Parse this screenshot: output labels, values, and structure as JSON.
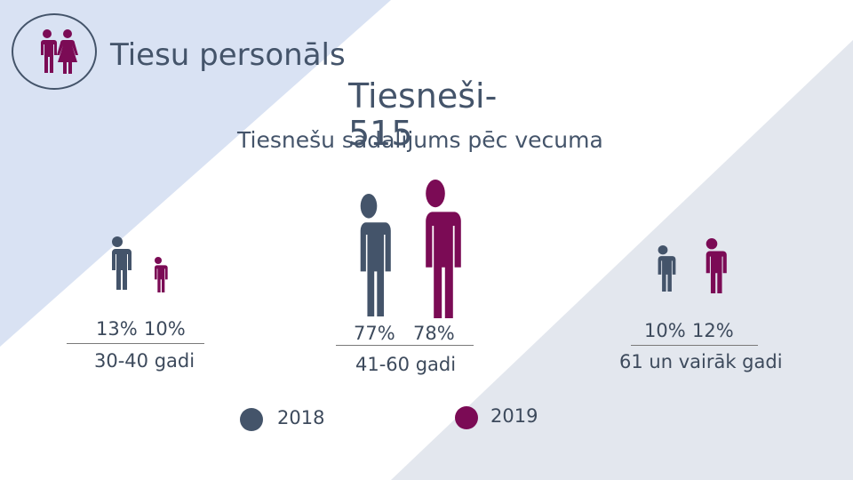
{
  "title": "Tiesu personāls",
  "judges_heading": "Tiesneši-",
  "judges_count": "515",
  "subtitle": "Tiesnešu sadalījums pēc vecuma",
  "icon_names": [
    "people-icon",
    "male-person-icon",
    "female-person-icon"
  ],
  "colors": {
    "year_2018": "#44546a",
    "year_2019": "#7b0b55",
    "background_band": "#d9e2f3",
    "background_right": "#e3e7ee"
  },
  "groups": [
    {
      "pct_2018": "13%",
      "pct_2019": "10%",
      "label": "30-40 gadi"
    },
    {
      "pct_2018": "77%",
      "pct_2019": "78%",
      "label": "41-60 gadi"
    },
    {
      "pct_2018": "10%",
      "pct_2019": "12%",
      "label": "61 un vairāk gadi"
    }
  ],
  "legend": [
    {
      "label": "2018"
    },
    {
      "label": "2019"
    }
  ]
}
